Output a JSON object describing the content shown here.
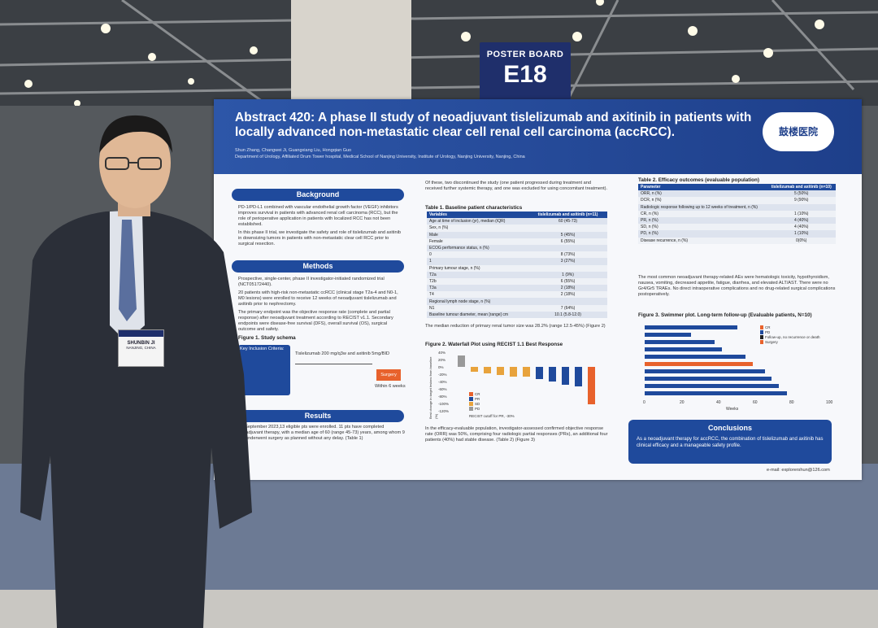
{
  "sign": {
    "label": "POSTER BOARD",
    "board": "E18"
  },
  "badge": {
    "name": "SHUNBIN JI",
    "city": "NANJING, CHINA"
  },
  "poster": {
    "title": "Abstract 420:  A phase II study of neoadjuvant tislelizumab and axitinib in patients with locally advanced non-metastatic clear cell renal cell carcinoma (accRCC).",
    "authors": "Shun Zhang, Changwei Ji, Guangxiang Liu, Hongqian Guo",
    "affiliation": "Department of Urology, Affiliated Drum Tower hospital, Medical School of Nanjing University, Institute of Urology, Nanjing University, Nanjing, China",
    "logo": "鼓楼医院",
    "background": {
      "heading": "Background",
      "bullets": [
        "PD-1/PD-L1 combined with vascular endothelial growth factor (VEGF) inhibitors improves survival in patients with advanced renal cell carcinoma (RCC), but the role of perioperative application in patients with localized RCC has not been established.",
        "In this phase II trial, we investigate the safety and role of tislelizumab and axitinib in downsizing tumors in patients with non-metastatic clear cell RCC prior to surgical resection."
      ]
    },
    "methods": {
      "heading": "Methods",
      "bullets": [
        "Prospective, single-center, phase II investigator-initiated randomized trial (NCT05172440).",
        "20 patients with high-risk non-metastatic ccRCC (clinical stage T2a-4 and N0-1, M0 lesions) were enrolled to receive 12 weeks of neoadjuvant tislelizumab and axitinib prior to nephrectomy.",
        "The primary endpoint was the objective response rate (complete and partial response) after neoadjuvant treatment according to RECIST v1.1. Secondary endpoints were disease-free survival (DFS), overall survival (OS), surgical outcome and safety."
      ],
      "figure": "Figure 1. Study schema",
      "criteria": "Key Inclusion Criteria:",
      "regimen": "Tislelizumab 200 mg/q3w and axitinib 5mg/BID",
      "surgery": "Surgery",
      "within": "Within 6 weeks"
    },
    "results": {
      "heading": "Results",
      "text": "By September 2023,13 eligible pts were enrolled. 11 pts have completed neoadjuvant therapy, with a median age of 60 (range 45-73) years, among whom 9 pts underwent surgery as planned without any delay. (Table 1)"
    },
    "mid_top": "Of these, two discontinued the study (one patient progressed during treatment and received further systemic therapy, and one was excluded for using concomitant treatment).",
    "table1": {
      "title": "Table 1. Baseline patient characteristics",
      "rows": [
        [
          "Variables",
          "tislelizumab and axitinib (n=11)"
        ],
        [
          "Age at time of inclusion (yr), median (IQR)",
          "60 (45-73)"
        ],
        [
          "Sex, n (%)",
          ""
        ],
        [
          "Male",
          "5 (45%)"
        ],
        [
          "Female",
          "6 (55%)"
        ],
        [
          "ECOG performance status, n (%)",
          ""
        ],
        [
          "0",
          "8 (73%)"
        ],
        [
          "1",
          "3 (27%)"
        ],
        [
          "Primary tumour stage, n (%)",
          ""
        ],
        [
          "T2a",
          "1 (9%)"
        ],
        [
          "T2b",
          "6 (55%)"
        ],
        [
          "T3a",
          "2 (18%)"
        ],
        [
          "T4",
          "2 (18%)"
        ],
        [
          "Regional lymph node stage, n (%)",
          ""
        ],
        [
          "N1",
          "7 (64%)"
        ],
        [
          "Baseline tumour diameter, mean [range] cm",
          "10.1 (5.8-12.0)"
        ]
      ]
    },
    "median_text": "The median reduction of primary renal tumor size was 28.2% (range 12.5-45%) (Figure 2)",
    "fig2": {
      "title": "Figure 2. Waterfall Plot using RECIST 1.1 Best Response",
      "ylabel": "Best change in target lesions from baseline (%)",
      "ticks": [
        "40%",
        "20%",
        "0%",
        "-20%",
        "-40%",
        "-60%",
        "-80%",
        "-100%",
        "-120%"
      ],
      "legend": [
        "CR",
        "PR",
        "SD",
        "PD"
      ],
      "cutoff": "RECIST cutoff for PR, -30%"
    },
    "mid_bottom": "In the efficacy-evaluable population, investigator-assessed confirmed objective response rate (ORR) was 50%, comprising four radiologic partial responses (PRs), an additional four patients (40%) had stable disease. (Table 2) (Figure 3)",
    "table2": {
      "title": "Table 2. Efficacy outcomes (evaluable population)",
      "rows": [
        [
          "Parameter",
          "tislelizumab and axitinib (n=10)"
        ],
        [
          "ORR, n (%)",
          "5 (50%)"
        ],
        [
          "DCR, n (%)",
          "9 (90%)"
        ],
        [
          "Radiologic response following up to 12 weeks of treatment, n (%)",
          ""
        ],
        [
          "CR, n (%)",
          "1 (10%)"
        ],
        [
          "PR, n (%)",
          "4 (40%)"
        ],
        [
          "SD, n (%)",
          "4 (40%)"
        ],
        [
          "PD, n (%)",
          "1 (10%)"
        ],
        [
          "Disease recurrence, n (%)",
          "0(0%)"
        ]
      ]
    },
    "ae_text": "The most common neoadjuvant therapy-related AEs were hematologic toxicity, hypothyroidism, nausea, vomiting, decreased appetite, fatigue, diarrhea, and elevated ALT/AST. There were no Gr4/Gr5 TRAEs. No direct intraoperative complications and no drug-related surgical complications postoperatively.",
    "fig3": {
      "title": "Figure 3. Swimmer plot. Long-term follow-up  (Evaluable patients, N=10)",
      "ticks": [
        "0",
        "20",
        "40",
        "60",
        "80",
        "100"
      ],
      "xlabel": "Weeks",
      "legend": [
        "CR",
        "PD",
        "Follow-up, no recurrence or death",
        "Surgery"
      ]
    },
    "conclusions": {
      "heading": "Conclusions",
      "text": "As a neoadjuvant therapy for accRCC, the combination of tislelizumab and axitinib has clinical efficacy and a manageable safety profile."
    },
    "email": "e-mail: explorershun@126.com"
  }
}
